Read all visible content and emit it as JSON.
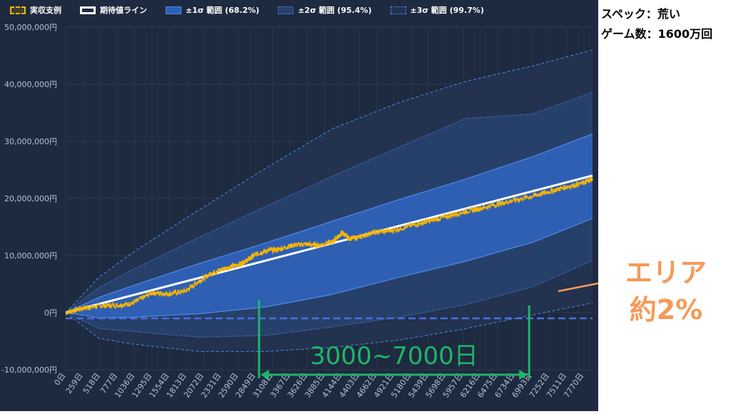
{
  "legend": [
    {
      "label": "実収支例",
      "style": "actual"
    },
    {
      "label": "期待値ライン",
      "style": "expected"
    },
    {
      "label": "±1σ 範囲 (68.2%)",
      "style": "s1"
    },
    {
      "label": "±2σ 範囲 (95.4%)",
      "style": "s2"
    },
    {
      "label": "±3σ 範囲 (99.7%)",
      "style": "s3"
    }
  ],
  "side_info": {
    "spec": "スペック：荒い",
    "games": "ゲーム数：1600万回"
  },
  "area_annotation": {
    "line1": "エリア",
    "line2": "約2%"
  },
  "range_annotation": {
    "label": "3000~7000日"
  },
  "colors": {
    "background": "#1e2a3f",
    "actual": "#f7b500",
    "expected": "#ffffff",
    "sigma1": "#2e5fb3",
    "sigma_line": "#4f8ae6",
    "zero_line": "#4a6fe0",
    "annotation_green": "#1fb56a",
    "annotation_orange": "#f59a5a"
  },
  "chart_data": {
    "type": "line",
    "x_unit": "日",
    "x_ticks": [
      "0日",
      "259日",
      "518日",
      "777日",
      "1036日",
      "1295日",
      "1554日",
      "1813日",
      "2072日",
      "2331日",
      "2590日",
      "2849日",
      "3108日",
      "3367日",
      "3626日",
      "3885日",
      "4144日",
      "4403日",
      "4662日",
      "4921日",
      "5180日",
      "5439日",
      "5698日",
      "5957日",
      "6216日",
      "6475日",
      "6734日",
      "6993日",
      "7252日",
      "7511日",
      "7770日"
    ],
    "y_ticks": [
      "50,000,000円",
      "40,000,000円",
      "30,000,000円",
      "20,000,000円",
      "10,000,000円",
      "0円",
      "-10,000,000円"
    ],
    "ylim": [
      -10000000,
      50000000
    ],
    "xlim": [
      0,
      7900
    ],
    "zero_reference_y": -1000000,
    "series": [
      {
        "name": "実収支例",
        "x": [
          0,
          260,
          520,
          780,
          1000,
          1300,
          1550,
          1800,
          2000,
          2200,
          2400,
          2590,
          2700,
          2850,
          3000,
          3200,
          3400,
          3600,
          3800,
          4000,
          4150,
          4250,
          4400,
          4600,
          4900,
          5200,
          5450,
          5700,
          5960,
          6200,
          6480,
          6700,
          7000,
          7250,
          7500,
          7770,
          7900
        ],
        "y": [
          0,
          800000,
          1200000,
          1300000,
          1600000,
          3500000,
          3300000,
          3800000,
          5500000,
          7000000,
          7800000,
          8400000,
          9000000,
          10200000,
          10800000,
          11100000,
          11800000,
          12000000,
          11800000,
          12400000,
          14000000,
          13000000,
          13200000,
          14000000,
          14400000,
          15300000,
          16000000,
          16800000,
          17600000,
          18200000,
          19000000,
          19600000,
          20400000,
          21200000,
          22000000,
          22700000,
          23500000
        ]
      },
      {
        "name": "期待値ライン",
        "x": [
          0,
          7900
        ],
        "y": [
          0,
          24000000
        ]
      },
      {
        "name": "±1σ 範囲 (68.2%)",
        "x": [
          0,
          500,
          1000,
          2000,
          3000,
          4000,
          5000,
          6000,
          7000,
          7900
        ],
        "upper": [
          0,
          2700000,
          4700000,
          8600000,
          12200000,
          16000000,
          19800000,
          23400000,
          27300000,
          31300000
        ],
        "lower": [
          0,
          -900000,
          -800000,
          -200000,
          1000000,
          3200000,
          6200000,
          9000000,
          12300000,
          16500000
        ]
      },
      {
        "name": "±2σ 範囲 (95.4%)",
        "x": [
          0,
          500,
          1000,
          2000,
          3000,
          4000,
          5000,
          6000,
          7000,
          7900
        ],
        "upper": [
          0,
          4400000,
          7500000,
          13200000,
          18600000,
          23900000,
          29000000,
          34000000,
          34800000,
          38600000
        ],
        "lower": [
          0,
          -2800000,
          -3300000,
          -4300000,
          -4000000,
          -2500000,
          -800000,
          1400000,
          4500000,
          9100000
        ]
      },
      {
        "name": "±3σ 範囲 (99.7%)",
        "x": [
          0,
          500,
          1000,
          2000,
          3000,
          4000,
          5000,
          6000,
          7000,
          7900
        ],
        "upper": [
          0,
          6200000,
          10500000,
          18000000,
          25300000,
          32200000,
          36800000,
          40500000,
          43200000,
          46000000
        ],
        "lower": [
          0,
          -4500000,
          -5500000,
          -6800000,
          -6800000,
          -6100000,
          -4800000,
          -2800000,
          -400000,
          1700000
        ]
      }
    ]
  }
}
